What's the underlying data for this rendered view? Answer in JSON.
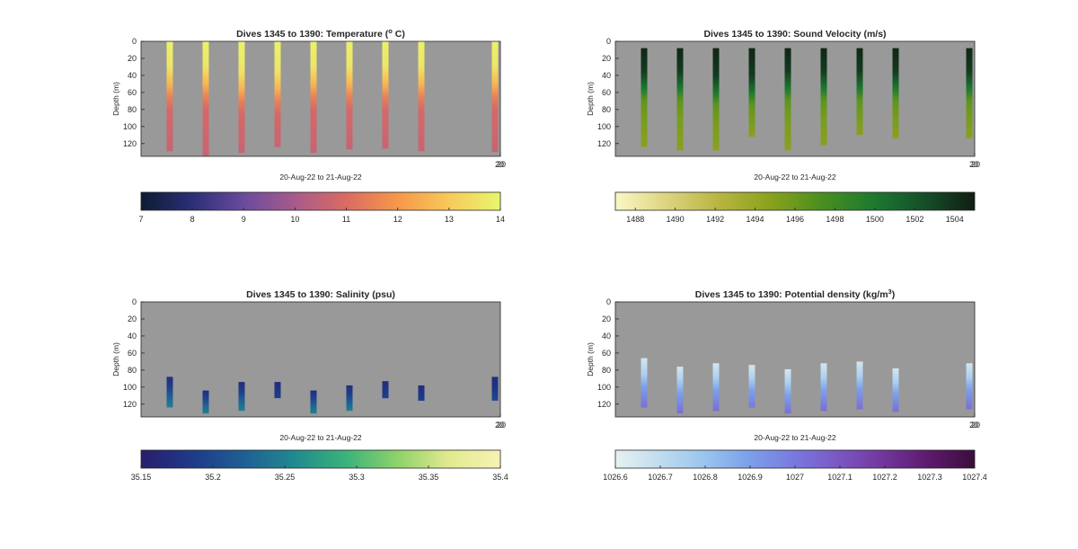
{
  "figure_background": "#ffffff",
  "panel_background": "#999999",
  "chart_data": [
    {
      "type": "heatmap",
      "title_main": "Dives 1345 to 1390: Temperature (",
      "title_sup": "o",
      "title_end": " C)",
      "ylabel": "Depth (m)",
      "xlabel": "20-Aug-22 to 21-Aug-22",
      "ylim": [
        0,
        135
      ],
      "yticks": [
        "0",
        "20",
        "40",
        "60",
        "80",
        "100",
        "120"
      ],
      "xticks": [
        "20"
      ],
      "colormap": [
        "#0d1b33",
        "#2b2f77",
        "#6a4b9e",
        "#a85a8a",
        "#db6b63",
        "#f6974a",
        "#f7c95b",
        "#e8f66d"
      ],
      "clim": [
        7,
        14
      ],
      "cbar_ticks": [
        "7",
        "8",
        "9",
        "10",
        "11",
        "12",
        "13",
        "14"
      ],
      "profiles": [
        {
          "x": 0.08,
          "top": 0,
          "bottom": 129,
          "values": [
            [
              0,
              13.9
            ],
            [
              30,
              13.6
            ],
            [
              50,
              12.6
            ],
            [
              65,
              11.5
            ],
            [
              80,
              10.9
            ],
            [
              129,
              10.6
            ]
          ]
        },
        {
          "x": 0.18,
          "top": 0,
          "bottom": 135,
          "values": [
            [
              0,
              13.9
            ],
            [
              30,
              13.6
            ],
            [
              50,
              12.6
            ],
            [
              65,
              11.5
            ],
            [
              80,
              10.9
            ],
            [
              135,
              10.6
            ]
          ]
        },
        {
          "x": 0.28,
          "top": 0,
          "bottom": 131,
          "values": [
            [
              0,
              13.9
            ],
            [
              35,
              13.6
            ],
            [
              55,
              12.6
            ],
            [
              70,
              11.5
            ],
            [
              85,
              10.9
            ],
            [
              131,
              10.6
            ]
          ]
        },
        {
          "x": 0.38,
          "top": 0,
          "bottom": 124,
          "values": [
            [
              0,
              13.9
            ],
            [
              35,
              13.6
            ],
            [
              55,
              12.6
            ],
            [
              70,
              11.5
            ],
            [
              85,
              10.9
            ],
            [
              124,
              10.6
            ]
          ]
        },
        {
          "x": 0.48,
          "top": 0,
          "bottom": 131,
          "values": [
            [
              0,
              13.9
            ],
            [
              30,
              13.6
            ],
            [
              50,
              12.6
            ],
            [
              65,
              11.5
            ],
            [
              80,
              10.9
            ],
            [
              131,
              10.6
            ]
          ]
        },
        {
          "x": 0.58,
          "top": 0,
          "bottom": 127,
          "values": [
            [
              0,
              13.9
            ],
            [
              30,
              13.6
            ],
            [
              50,
              12.6
            ],
            [
              65,
              11.5
            ],
            [
              80,
              10.9
            ],
            [
              127,
              10.6
            ]
          ]
        },
        {
          "x": 0.68,
          "top": 0,
          "bottom": 126,
          "values": [
            [
              0,
              13.9
            ],
            [
              30,
              13.6
            ],
            [
              50,
              12.6
            ],
            [
              65,
              11.5
            ],
            [
              80,
              10.9
            ],
            [
              126,
              10.6
            ]
          ]
        },
        {
          "x": 0.78,
          "top": 0,
          "bottom": 129,
          "values": [
            [
              0,
              13.9
            ],
            [
              30,
              13.6
            ],
            [
              50,
              12.6
            ],
            [
              65,
              11.5
            ],
            [
              80,
              10.9
            ],
            [
              129,
              10.6
            ]
          ]
        },
        {
          "x": 0.985,
          "top": 0,
          "bottom": 130,
          "values": [
            [
              0,
              13.9
            ],
            [
              30,
              13.6
            ],
            [
              50,
              12.6
            ],
            [
              65,
              11.5
            ],
            [
              80,
              10.9
            ],
            [
              130,
              10.6
            ]
          ]
        }
      ]
    },
    {
      "type": "heatmap",
      "title_main": "Dives 1345 to 1390: Sound Velocity (m/s)",
      "title_sup": "",
      "title_end": "",
      "ylabel": "Depth (m)",
      "xlabel": "20-Aug-22 to 21-Aug-22",
      "ylim": [
        0,
        135
      ],
      "yticks": [
        "0",
        "20",
        "40",
        "60",
        "80",
        "100",
        "120"
      ],
      "xticks": [
        "20"
      ],
      "colormap": [
        "#fbf7c6",
        "#dcd47e",
        "#b9b542",
        "#8ba21d",
        "#4a8f1f",
        "#1e7a2f",
        "#14502a",
        "#111d12"
      ],
      "clim": [
        1487,
        1505
      ],
      "cbar_ticks": [
        "1488",
        "1490",
        "1492",
        "1494",
        "1496",
        "1498",
        "1500",
        "1502",
        "1504"
      ],
      "profiles": [
        {
          "x": 0.08,
          "top": 8,
          "bottom": 124,
          "values": [
            [
              8,
              1504.6
            ],
            [
              35,
              1503.5
            ],
            [
              55,
              1500.0
            ],
            [
              70,
              1496.5
            ],
            [
              90,
              1495.5
            ],
            [
              124,
              1494.8
            ]
          ]
        },
        {
          "x": 0.18,
          "top": 8,
          "bottom": 128,
          "values": [
            [
              8,
              1504.6
            ],
            [
              35,
              1503.5
            ],
            [
              55,
              1500.0
            ],
            [
              70,
              1496.5
            ],
            [
              90,
              1495.5
            ],
            [
              128,
              1494.8
            ]
          ]
        },
        {
          "x": 0.28,
          "top": 8,
          "bottom": 128,
          "values": [
            [
              8,
              1504.6
            ],
            [
              40,
              1503.5
            ],
            [
              60,
              1500.0
            ],
            [
              75,
              1496.5
            ],
            [
              95,
              1495.5
            ],
            [
              128,
              1494.8
            ]
          ]
        },
        {
          "x": 0.38,
          "top": 8,
          "bottom": 112,
          "values": [
            [
              8,
              1504.6
            ],
            [
              40,
              1503.5
            ],
            [
              60,
              1500.0
            ],
            [
              75,
              1496.5
            ],
            [
              95,
              1495.5
            ],
            [
              112,
              1494.8
            ]
          ]
        },
        {
          "x": 0.48,
          "top": 8,
          "bottom": 128,
          "values": [
            [
              8,
              1504.6
            ],
            [
              35,
              1503.5
            ],
            [
              55,
              1500.0
            ],
            [
              70,
              1496.5
            ],
            [
              90,
              1495.5
            ],
            [
              128,
              1494.8
            ]
          ]
        },
        {
          "x": 0.58,
          "top": 8,
          "bottom": 122,
          "values": [
            [
              8,
              1504.6
            ],
            [
              35,
              1503.5
            ],
            [
              55,
              1500.0
            ],
            [
              70,
              1496.5
            ],
            [
              90,
              1495.5
            ],
            [
              122,
              1494.8
            ]
          ]
        },
        {
          "x": 0.68,
          "top": 8,
          "bottom": 110,
          "values": [
            [
              8,
              1504.6
            ],
            [
              35,
              1503.5
            ],
            [
              55,
              1500.0
            ],
            [
              70,
              1496.5
            ],
            [
              90,
              1495.5
            ],
            [
              110,
              1494.8
            ]
          ]
        },
        {
          "x": 0.78,
          "top": 8,
          "bottom": 114,
          "values": [
            [
              8,
              1504.6
            ],
            [
              35,
              1503.5
            ],
            [
              55,
              1500.0
            ],
            [
              70,
              1496.5
            ],
            [
              90,
              1495.5
            ],
            [
              114,
              1494.8
            ]
          ]
        },
        {
          "x": 0.985,
          "top": 8,
          "bottom": 114,
          "values": [
            [
              8,
              1504.6
            ],
            [
              35,
              1503.5
            ],
            [
              55,
              1500.0
            ],
            [
              70,
              1496.5
            ],
            [
              90,
              1495.5
            ],
            [
              114,
              1494.8
            ]
          ]
        }
      ]
    },
    {
      "type": "heatmap",
      "title_main": "Dives 1345 to 1390: Salinity (psu)",
      "title_sup": "",
      "title_end": "",
      "ylabel": "Depth (m)",
      "xlabel": "20-Aug-22 to 21-Aug-22",
      "ylim": [
        0,
        135
      ],
      "yticks": [
        "0",
        "20",
        "40",
        "60",
        "80",
        "100",
        "120"
      ],
      "xticks": [
        "20"
      ],
      "colormap": [
        "#2a1d6b",
        "#1e3a8a",
        "#1f5f94",
        "#208a8f",
        "#3bb37a",
        "#8fd26a",
        "#e2ea8f",
        "#f7f2b2"
      ],
      "clim": [
        35.15,
        35.4
      ],
      "cbar_ticks": [
        "35.15",
        "35.2",
        "35.25",
        "35.3",
        "35.35",
        "35.4"
      ],
      "profiles": [
        {
          "x": 0.08,
          "top": 88,
          "bottom": 124,
          "values": [
            [
              88,
              35.17
            ],
            [
              100,
              35.19
            ],
            [
              110,
              35.22
            ],
            [
              124,
              35.25
            ]
          ]
        },
        {
          "x": 0.18,
          "top": 104,
          "bottom": 131,
          "values": [
            [
              104,
              35.17
            ],
            [
              112,
              35.19
            ],
            [
              120,
              35.22
            ],
            [
              131,
              35.25
            ]
          ]
        },
        {
          "x": 0.28,
          "top": 94,
          "bottom": 128,
          "values": [
            [
              94,
              35.17
            ],
            [
              105,
              35.19
            ],
            [
              115,
              35.22
            ],
            [
              128,
              35.25
            ]
          ]
        },
        {
          "x": 0.38,
          "top": 94,
          "bottom": 113,
          "values": [
            [
              94,
              35.17
            ],
            [
              104,
              35.18
            ],
            [
              113,
              35.19
            ]
          ]
        },
        {
          "x": 0.48,
          "top": 104,
          "bottom": 131,
          "values": [
            [
              104,
              35.17
            ],
            [
              112,
              35.19
            ],
            [
              120,
              35.22
            ],
            [
              131,
              35.25
            ]
          ]
        },
        {
          "x": 0.58,
          "top": 98,
          "bottom": 128,
          "values": [
            [
              98,
              35.17
            ],
            [
              108,
              35.19
            ],
            [
              118,
              35.22
            ],
            [
              128,
              35.25
            ]
          ]
        },
        {
          "x": 0.68,
          "top": 93,
          "bottom": 113,
          "values": [
            [
              93,
              35.17
            ],
            [
              103,
              35.18
            ],
            [
              113,
              35.19
            ]
          ]
        },
        {
          "x": 0.78,
          "top": 98,
          "bottom": 116,
          "values": [
            [
              98,
              35.17
            ],
            [
              108,
              35.18
            ],
            [
              116,
              35.19
            ]
          ]
        },
        {
          "x": 0.985,
          "top": 88,
          "bottom": 116,
          "values": [
            [
              88,
              35.17
            ],
            [
              102,
              35.18
            ],
            [
              116,
              35.2
            ]
          ]
        }
      ]
    },
    {
      "type": "heatmap",
      "title_main": "Dives 1345 to 1390: Potential density (kg/m",
      "title_sup": "3",
      "title_end": ")",
      "ylabel": "Depth (m)",
      "xlabel": "20-Aug-22 to 21-Aug-22",
      "ylim": [
        0,
        135
      ],
      "yticks": [
        "0",
        "20",
        "40",
        "60",
        "80",
        "100",
        "120"
      ],
      "xticks": [
        "20"
      ],
      "colormap": [
        "#e6f1f2",
        "#bfdcef",
        "#9ac4ee",
        "#7c9fea",
        "#7a78de",
        "#7a56c2",
        "#71359a",
        "#5c1a6c",
        "#3a0d3a"
      ],
      "clim": [
        1026.6,
        1027.4
      ],
      "cbar_ticks": [
        "1026.6",
        "1026.7",
        "1026.8",
        "1026.9",
        "1027",
        "1027.1",
        "1027.2",
        "1027.3",
        "1027.4"
      ],
      "profiles": [
        {
          "x": 0.08,
          "top": 66,
          "bottom": 124,
          "values": [
            [
              66,
              1026.65
            ],
            [
              85,
              1026.75
            ],
            [
              100,
              1026.9
            ],
            [
              124,
              1027.03
            ]
          ]
        },
        {
          "x": 0.18,
          "top": 76,
          "bottom": 131,
          "values": [
            [
              76,
              1026.65
            ],
            [
              92,
              1026.75
            ],
            [
              107,
              1026.9
            ],
            [
              131,
              1027.03
            ]
          ]
        },
        {
          "x": 0.28,
          "top": 72,
          "bottom": 128,
          "values": [
            [
              72,
              1026.65
            ],
            [
              89,
              1026.75
            ],
            [
              104,
              1026.9
            ],
            [
              128,
              1027.03
            ]
          ]
        },
        {
          "x": 0.38,
          "top": 74,
          "bottom": 124,
          "values": [
            [
              74,
              1026.65
            ],
            [
              90,
              1026.75
            ],
            [
              104,
              1026.9
            ],
            [
              124,
              1027.0
            ]
          ]
        },
        {
          "x": 0.48,
          "top": 79,
          "bottom": 131,
          "values": [
            [
              79,
              1026.65
            ],
            [
              95,
              1026.75
            ],
            [
              110,
              1026.9
            ],
            [
              131,
              1027.03
            ]
          ]
        },
        {
          "x": 0.58,
          "top": 72,
          "bottom": 128,
          "values": [
            [
              72,
              1026.65
            ],
            [
              89,
              1026.75
            ],
            [
              104,
              1026.9
            ],
            [
              128,
              1027.03
            ]
          ]
        },
        {
          "x": 0.68,
          "top": 70,
          "bottom": 126,
          "values": [
            [
              70,
              1026.65
            ],
            [
              87,
              1026.75
            ],
            [
              102,
              1026.9
            ],
            [
              126,
              1027.03
            ]
          ]
        },
        {
          "x": 0.78,
          "top": 78,
          "bottom": 129,
          "values": [
            [
              78,
              1026.65
            ],
            [
              94,
              1026.75
            ],
            [
              108,
              1026.9
            ],
            [
              129,
              1027.03
            ]
          ]
        },
        {
          "x": 0.985,
          "top": 72,
          "bottom": 126,
          "values": [
            [
              72,
              1026.65
            ],
            [
              88,
              1026.75
            ],
            [
              103,
              1026.9
            ],
            [
              126,
              1027.03
            ]
          ]
        }
      ]
    }
  ]
}
